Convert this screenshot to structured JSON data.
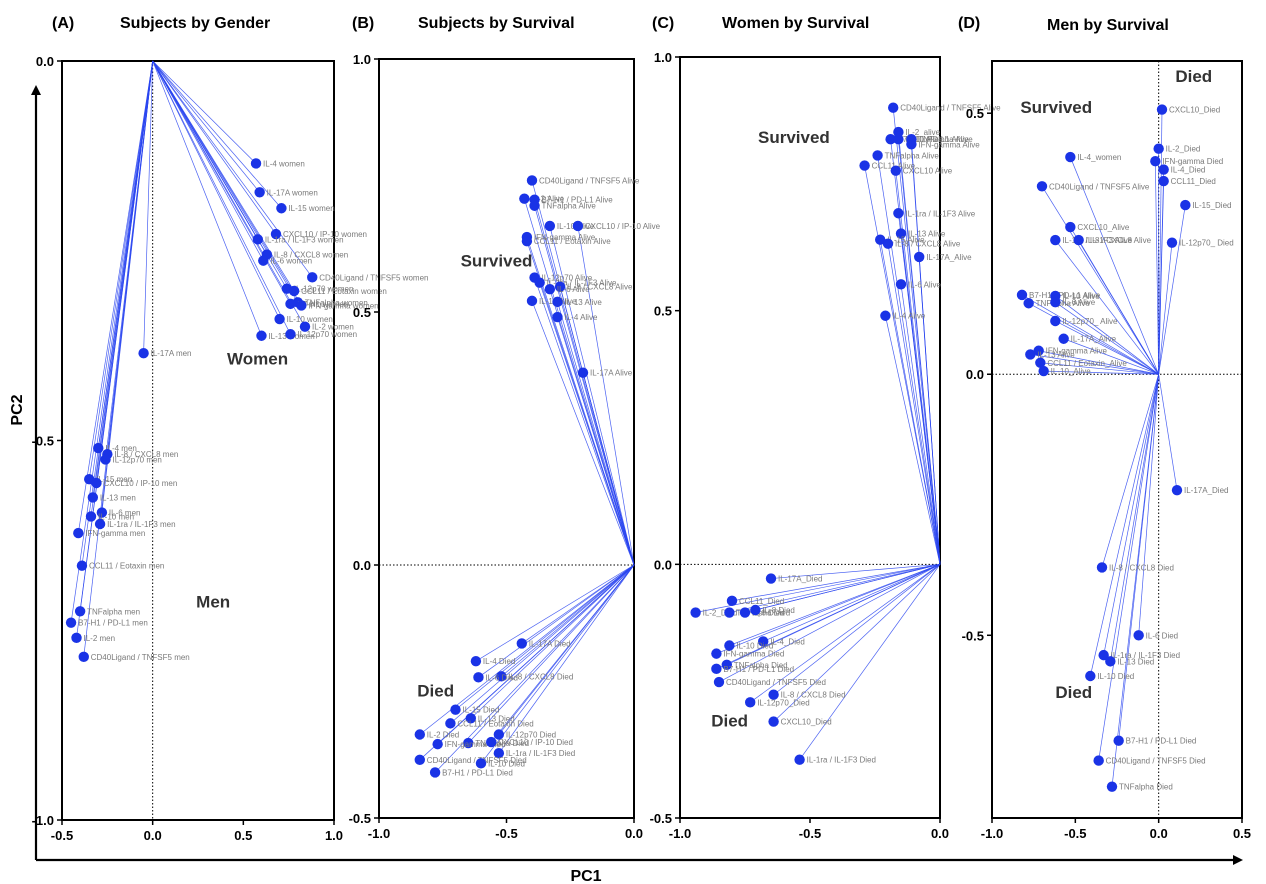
{
  "axes": {
    "xlabel": "PC1",
    "ylabel": "PC2"
  },
  "colors": {
    "point": "#1a33e6",
    "line": "#2a45f0",
    "label": "#7a7a7a"
  },
  "chart_data": [
    {
      "type": "scatter",
      "letter": "(A)",
      "title": "Subjects by Gender",
      "xlim": [
        -0.5,
        1.0
      ],
      "ylim": [
        -1.0,
        0.0
      ],
      "xticks": [
        {
          "v": -0.5,
          "t": "-0.5"
        },
        {
          "v": 0.0,
          "t": "0.0"
        },
        {
          "v": 0.5,
          "t": "0.5"
        },
        {
          "v": 1.0,
          "t": "1.0"
        }
      ],
      "yticks": [
        {
          "v": 0.0,
          "t": "0.0"
        },
        {
          "v": -0.5,
          "t": "-0.5"
        },
        {
          "v": -1.0,
          "t": "-1.0"
        }
      ],
      "origin": [
        0,
        0
      ],
      "annotations": [
        {
          "text": "Women",
          "x": 0.41,
          "y": -0.4
        },
        {
          "text": "Men",
          "x": 0.24,
          "y": -0.72
        }
      ],
      "points": [
        {
          "label": "IL-4 women",
          "x": 0.57,
          "y": -0.135
        },
        {
          "label": "IL-17A women",
          "x": 0.59,
          "y": -0.173
        },
        {
          "label": "IL-15 women",
          "x": 0.71,
          "y": -0.194
        },
        {
          "label": "CXCL10 / IP-10 women",
          "x": 0.68,
          "y": -0.228
        },
        {
          "label": "IL-1ra / IL-1F3 women",
          "x": 0.58,
          "y": -0.235
        },
        {
          "label": "IL-8 / CXCL8 women",
          "x": 0.63,
          "y": -0.255
        },
        {
          "label": "IL-6 women",
          "x": 0.61,
          "y": -0.263
        },
        {
          "label": "CD40Ligand / TNFSF5 women",
          "x": 0.88,
          "y": -0.285
        },
        {
          "label": "IL-12p70 women",
          "x": 0.74,
          "y": -0.3
        },
        {
          "label": "CCL11 / Eotaxin women",
          "x": 0.78,
          "y": -0.303
        },
        {
          "label": "TNFalpha women",
          "x": 0.8,
          "y": -0.318
        },
        {
          "label": "B7-H1 women",
          "x": 0.76,
          "y": -0.32
        },
        {
          "label": "IFN-gamma women",
          "x": 0.82,
          "y": -0.322
        },
        {
          "label": "IL-10 women",
          "x": 0.7,
          "y": -0.34
        },
        {
          "label": "IL-2 women",
          "x": 0.84,
          "y": -0.35
        },
        {
          "label": "IL-13 women",
          "x": 0.6,
          "y": -0.362
        },
        {
          "label": "IL-12p70 women",
          "x": 0.76,
          "y": -0.36
        },
        {
          "label": "IL-17A men",
          "x": -0.05,
          "y": -0.385
        },
        {
          "label": "IL-4 men",
          "x": -0.3,
          "y": -0.51
        },
        {
          "label": "IL-8 / CXCL8 men",
          "x": -0.25,
          "y": -0.518
        },
        {
          "label": "IL-12p70 men",
          "x": -0.26,
          "y": -0.525
        },
        {
          "label": "IL-15 men",
          "x": -0.35,
          "y": -0.551
        },
        {
          "label": "CXCL10 / IP-10 men",
          "x": -0.31,
          "y": -0.556
        },
        {
          "label": "IL-13 men",
          "x": -0.33,
          "y": -0.575
        },
        {
          "label": "IL-6 men",
          "x": -0.28,
          "y": -0.595
        },
        {
          "label": "IL-10 men",
          "x": -0.34,
          "y": -0.6
        },
        {
          "label": "IL-1ra / IL-1F3 men",
          "x": -0.29,
          "y": -0.61
        },
        {
          "label": "IFN-gamma men",
          "x": -0.41,
          "y": -0.622
        },
        {
          "label": "CCL11 / Eotaxin men",
          "x": -0.39,
          "y": -0.665
        },
        {
          "label": "TNFalpha men",
          "x": -0.4,
          "y": -0.725
        },
        {
          "label": "B7-H1 / PD-L1 men",
          "x": -0.45,
          "y": -0.74
        },
        {
          "label": "IL-2 men",
          "x": -0.42,
          "y": -0.76
        },
        {
          "label": "CD40Ligand / TNFSF5 men",
          "x": -0.38,
          "y": -0.785
        }
      ]
    },
    {
      "type": "scatter",
      "letter": "(B)",
      "title": "Subjects by Survival",
      "xlim": [
        -1.0,
        0.0
      ],
      "ylim": [
        -0.5,
        1.0
      ],
      "xticks": [
        {
          "v": -1.0,
          "t": "-1.0"
        },
        {
          "v": -0.5,
          "t": "-0.5"
        },
        {
          "v": 0.0,
          "t": "0.0"
        }
      ],
      "yticks": [
        {
          "v": 1.0,
          "t": "1.0"
        },
        {
          "v": 0.5,
          "t": "0.5"
        },
        {
          "v": 0.0,
          "t": "0.0"
        },
        {
          "v": -0.5,
          "t": "-0.5"
        }
      ],
      "origin": [
        0,
        0
      ],
      "annotations": [
        {
          "text": "Survived",
          "x": -0.68,
          "y": 0.59
        },
        {
          "text": "Died",
          "x": -0.85,
          "y": -0.26
        }
      ],
      "points": [
        {
          "label": "CD40Ligand / TNFSF5 Alive",
          "x": -0.4,
          "y": 0.76
        },
        {
          "label": "IL-2 Alive",
          "x": -0.43,
          "y": 0.724
        },
        {
          "label": "B7-H1 / PD-L1 Alive",
          "x": -0.39,
          "y": 0.722
        },
        {
          "label": "TNFalpha Alive",
          "x": -0.39,
          "y": 0.71
        },
        {
          "label": "IL-10 Alive",
          "x": -0.33,
          "y": 0.67
        },
        {
          "label": "CXCL10 / IP-10 Alive",
          "x": -0.22,
          "y": 0.67
        },
        {
          "label": "IFN-gamma Alive",
          "x": -0.42,
          "y": 0.648
        },
        {
          "label": "CCL11 / Eotaxin Alive",
          "x": -0.42,
          "y": 0.64
        },
        {
          "label": "IL-12p70 Alive",
          "x": -0.39,
          "y": 0.568
        },
        {
          "label": "IL-1ra / IL-1F3 Alive",
          "x": -0.37,
          "y": 0.558
        },
        {
          "label": "IL-8 / CXCL8 Alive",
          "x": -0.29,
          "y": 0.55
        },
        {
          "label": "IL-6 Alive",
          "x": -0.33,
          "y": 0.545
        },
        {
          "label": "IL-15 Alive",
          "x": -0.4,
          "y": 0.522
        },
        {
          "label": "IL-13 Alive",
          "x": -0.3,
          "y": 0.52
        },
        {
          "label": "IL-4 Alive",
          "x": -0.3,
          "y": 0.49
        },
        {
          "label": "IL-17A Alive",
          "x": -0.2,
          "y": 0.38
        },
        {
          "label": "IL-17A Died",
          "x": -0.44,
          "y": -0.155
        },
        {
          "label": "IL-4 Died",
          "x": -0.62,
          "y": -0.19
        },
        {
          "label": "IL-8 / CXCL8 Died",
          "x": -0.52,
          "y": -0.22
        },
        {
          "label": "IL-6 Died",
          "x": -0.61,
          "y": -0.222
        },
        {
          "label": "IL-15 Died",
          "x": -0.7,
          "y": -0.286
        },
        {
          "label": "IL-13 Died",
          "x": -0.64,
          "y": -0.303
        },
        {
          "label": "CCL11 / Eotaxin Died",
          "x": -0.72,
          "y": -0.313
        },
        {
          "label": "IL-12p70 Died",
          "x": -0.53,
          "y": -0.335
        },
        {
          "label": "IL-2 Died",
          "x": -0.84,
          "y": -0.335
        },
        {
          "label": "TNFalpha Died",
          "x": -0.65,
          "y": -0.352
        },
        {
          "label": "IFN-gamma Died",
          "x": -0.77,
          "y": -0.354
        },
        {
          "label": "CXCL10 / IP-10 Died",
          "x": -0.56,
          "y": -0.35
        },
        {
          "label": "IL-1ra / IL-1F3 Died",
          "x": -0.53,
          "y": -0.372
        },
        {
          "label": "CD40Ligand / TNFSF5 Died",
          "x": -0.84,
          "y": -0.385
        },
        {
          "label": "IL-10 Died",
          "x": -0.6,
          "y": -0.392
        },
        {
          "label": "B7-H1 / PD-L1 Died",
          "x": -0.78,
          "y": -0.41
        }
      ]
    },
    {
      "type": "scatter",
      "letter": "(C)",
      "title": "Women by Survival",
      "xlim": [
        -1.0,
        0.0
      ],
      "ylim": [
        -0.5,
        1.0
      ],
      "xticks": [
        {
          "v": -1.0,
          "t": "-1.0"
        },
        {
          "v": -0.5,
          "t": "-0.5"
        },
        {
          "v": 0.0,
          "t": "0.0"
        }
      ],
      "yticks": [
        {
          "v": 1.0,
          "t": "1.0"
        },
        {
          "v": 0.5,
          "t": "0.5"
        },
        {
          "v": 0.0,
          "t": "0.0"
        },
        {
          "v": -0.5,
          "t": "-0.5"
        }
      ],
      "origin": [
        0,
        0
      ],
      "annotations": [
        {
          "text": "Survived",
          "x": -0.7,
          "y": 0.83
        },
        {
          "text": "Died",
          "x": -0.88,
          "y": -0.32
        }
      ],
      "points": [
        {
          "label": "CD40Ligand / TNFSF5 Alive",
          "x": -0.18,
          "y": 0.9
        },
        {
          "label": "IL-2_alive",
          "x": -0.16,
          "y": 0.852
        },
        {
          "label": "B7-H1 / PD-L1 Alive",
          "x": -0.19,
          "y": 0.838
        },
        {
          "label": "IL-10 Alive",
          "x": -0.16,
          "y": 0.838
        },
        {
          "label": "TNFalpha Alive",
          "x": -0.11,
          "y": 0.838
        },
        {
          "label": "IFN-gamma Alive",
          "x": -0.11,
          "y": 0.828
        },
        {
          "label": "TNFalpha Alive",
          "x": -0.24,
          "y": 0.806
        },
        {
          "label": "CCL11 Alive",
          "x": -0.29,
          "y": 0.786
        },
        {
          "label": "CXCL10 Alive",
          "x": -0.17,
          "y": 0.776
        },
        {
          "label": "IL-1ra / IL-1F3 Alive",
          "x": -0.16,
          "y": 0.692
        },
        {
          "label": "IL-13 Alive",
          "x": -0.15,
          "y": 0.652
        },
        {
          "label": "IL-15 Alive",
          "x": -0.23,
          "y": 0.64
        },
        {
          "label": "IL-8 / CXCL8 Alive",
          "x": -0.2,
          "y": 0.632
        },
        {
          "label": "IL-17A_Alive",
          "x": -0.08,
          "y": 0.606
        },
        {
          "label": "IL-6 Alive",
          "x": -0.15,
          "y": 0.552
        },
        {
          "label": "IL-4 Alive",
          "x": -0.21,
          "y": 0.49
        },
        {
          "label": "IL-17A_Died",
          "x": -0.65,
          "y": -0.028
        },
        {
          "label": "CCL11_Died",
          "x": -0.8,
          "y": -0.072
        },
        {
          "label": "IL-2_Died",
          "x": -0.94,
          "y": -0.095
        },
        {
          "label": "TNFalpha Died",
          "x": -0.81,
          "y": -0.095
        },
        {
          "label": "IL-6 Died",
          "x": -0.75,
          "y": -0.095
        },
        {
          "label": "IL-8 Died",
          "x": -0.71,
          "y": -0.09
        },
        {
          "label": "IL-4_Died",
          "x": -0.68,
          "y": -0.152
        },
        {
          "label": "IFN-gamma Died",
          "x": -0.86,
          "y": -0.176
        },
        {
          "label": "IL-10 Died",
          "x": -0.81,
          "y": -0.16
        },
        {
          "label": "TNFalpha Died",
          "x": -0.82,
          "y": -0.198
        },
        {
          "label": "B7-H1 / PD-L1 Died",
          "x": -0.86,
          "y": -0.206
        },
        {
          "label": "CD40Ligand / TNFSF5 Died",
          "x": -0.85,
          "y": -0.232
        },
        {
          "label": "IL-8 / CXCL8 Died",
          "x": -0.64,
          "y": -0.257
        },
        {
          "label": "IL-12p70_Died",
          "x": -0.73,
          "y": -0.272
        },
        {
          "label": "CXCL10_Died",
          "x": -0.64,
          "y": -0.31
        },
        {
          "label": "IL-1ra / IL-1F3  Died",
          "x": -0.54,
          "y": -0.385
        }
      ]
    },
    {
      "type": "scatter",
      "letter": "(D)",
      "title": "Men by Survival",
      "xlim": [
        -1.0,
        0.5
      ],
      "ylim": [
        -0.85,
        0.6
      ],
      "xticks": [
        {
          "v": -1.0,
          "t": "-1.0"
        },
        {
          "v": -0.5,
          "t": "-0.5"
        },
        {
          "v": 0.0,
          "t": "0.0"
        },
        {
          "v": 0.5,
          "t": "0.5"
        }
      ],
      "yticks": [
        {
          "v": 0.5,
          "t": "0.5"
        },
        {
          "v": 0.0,
          "t": "0.0"
        },
        {
          "v": -0.5,
          "t": "-0.5"
        }
      ],
      "origin": [
        0,
        0
      ],
      "annotations": [
        {
          "text": "Died",
          "x": 0.1,
          "y": 0.56
        },
        {
          "text": "Survived",
          "x": -0.83,
          "y": 0.5
        },
        {
          "text": "Died",
          "x": -0.62,
          "y": -0.62
        }
      ],
      "points": [
        {
          "label": "CXCL10_Died",
          "x": 0.02,
          "y": 0.507
        },
        {
          "label": "IL-2_Died",
          "x": 0.0,
          "y": 0.432
        },
        {
          "label": "IL-4_women",
          "x": -0.53,
          "y": 0.416
        },
        {
          "label": "IFN-gamma Died",
          "x": -0.02,
          "y": 0.408
        },
        {
          "label": "IL-4_Died",
          "x": 0.03,
          "y": 0.392
        },
        {
          "label": "CCL11_Died",
          "x": 0.03,
          "y": 0.37
        },
        {
          "label": "CD40Ligand / TNFSF5 Alive",
          "x": -0.7,
          "y": 0.36
        },
        {
          "label": "IL-15_Died",
          "x": 0.16,
          "y": 0.324
        },
        {
          "label": "CXCL10_Alive",
          "x": -0.53,
          "y": 0.282
        },
        {
          "label": "IL-1ra / IL-1F3 Alive",
          "x": -0.62,
          "y": 0.257
        },
        {
          "label": "IL-8 / CXCL8 Alive",
          "x": -0.48,
          "y": 0.257
        },
        {
          "label": "IL-12p70_ Died",
          "x": 0.08,
          "y": 0.252
        },
        {
          "label": "B7-H1 / PD-L1 Alive",
          "x": -0.82,
          "y": 0.152
        },
        {
          "label": "IL-10 Alive",
          "x": -0.62,
          "y": 0.15
        },
        {
          "label": "TNFalpha Alive",
          "x": -0.78,
          "y": 0.136
        },
        {
          "label": "IL-6 Alive",
          "x": -0.62,
          "y": 0.138
        },
        {
          "label": "IL-12p70_ Alive",
          "x": -0.62,
          "y": 0.102
        },
        {
          "label": "IL-17A_Alive",
          "x": -0.57,
          "y": 0.068
        },
        {
          "label": "IFN-gamma Alive",
          "x": -0.72,
          "y": 0.045
        },
        {
          "label": "IL-13 Alive",
          "x": -0.77,
          "y": 0.038
        },
        {
          "label": "CCL11 / Eotaxin_Alive",
          "x": -0.71,
          "y": 0.022
        },
        {
          "label": "IL-10_Alive",
          "x": -0.69,
          "y": 0.006
        },
        {
          "label": "IL-17A_Died",
          "x": 0.11,
          "y": -0.222
        },
        {
          "label": "IL-8 / CXCL8 Died",
          "x": -0.34,
          "y": -0.37
        },
        {
          "label": "IL-6 Died",
          "x": -0.12,
          "y": -0.5
        },
        {
          "label": "IL-1ra / IL-1F3 Died",
          "x": -0.33,
          "y": -0.538
        },
        {
          "label": "IL-13 Died",
          "x": -0.29,
          "y": -0.55
        },
        {
          "label": "IL-10 Died",
          "x": -0.41,
          "y": -0.578
        },
        {
          "label": "B7-H1 / PD-L1 Died",
          "x": -0.24,
          "y": -0.702
        },
        {
          "label": "CD40Ligand / TNFSF5 Died",
          "x": -0.36,
          "y": -0.74
        },
        {
          "label": "TNFalpha Died",
          "x": -0.28,
          "y": -0.79
        }
      ]
    }
  ]
}
